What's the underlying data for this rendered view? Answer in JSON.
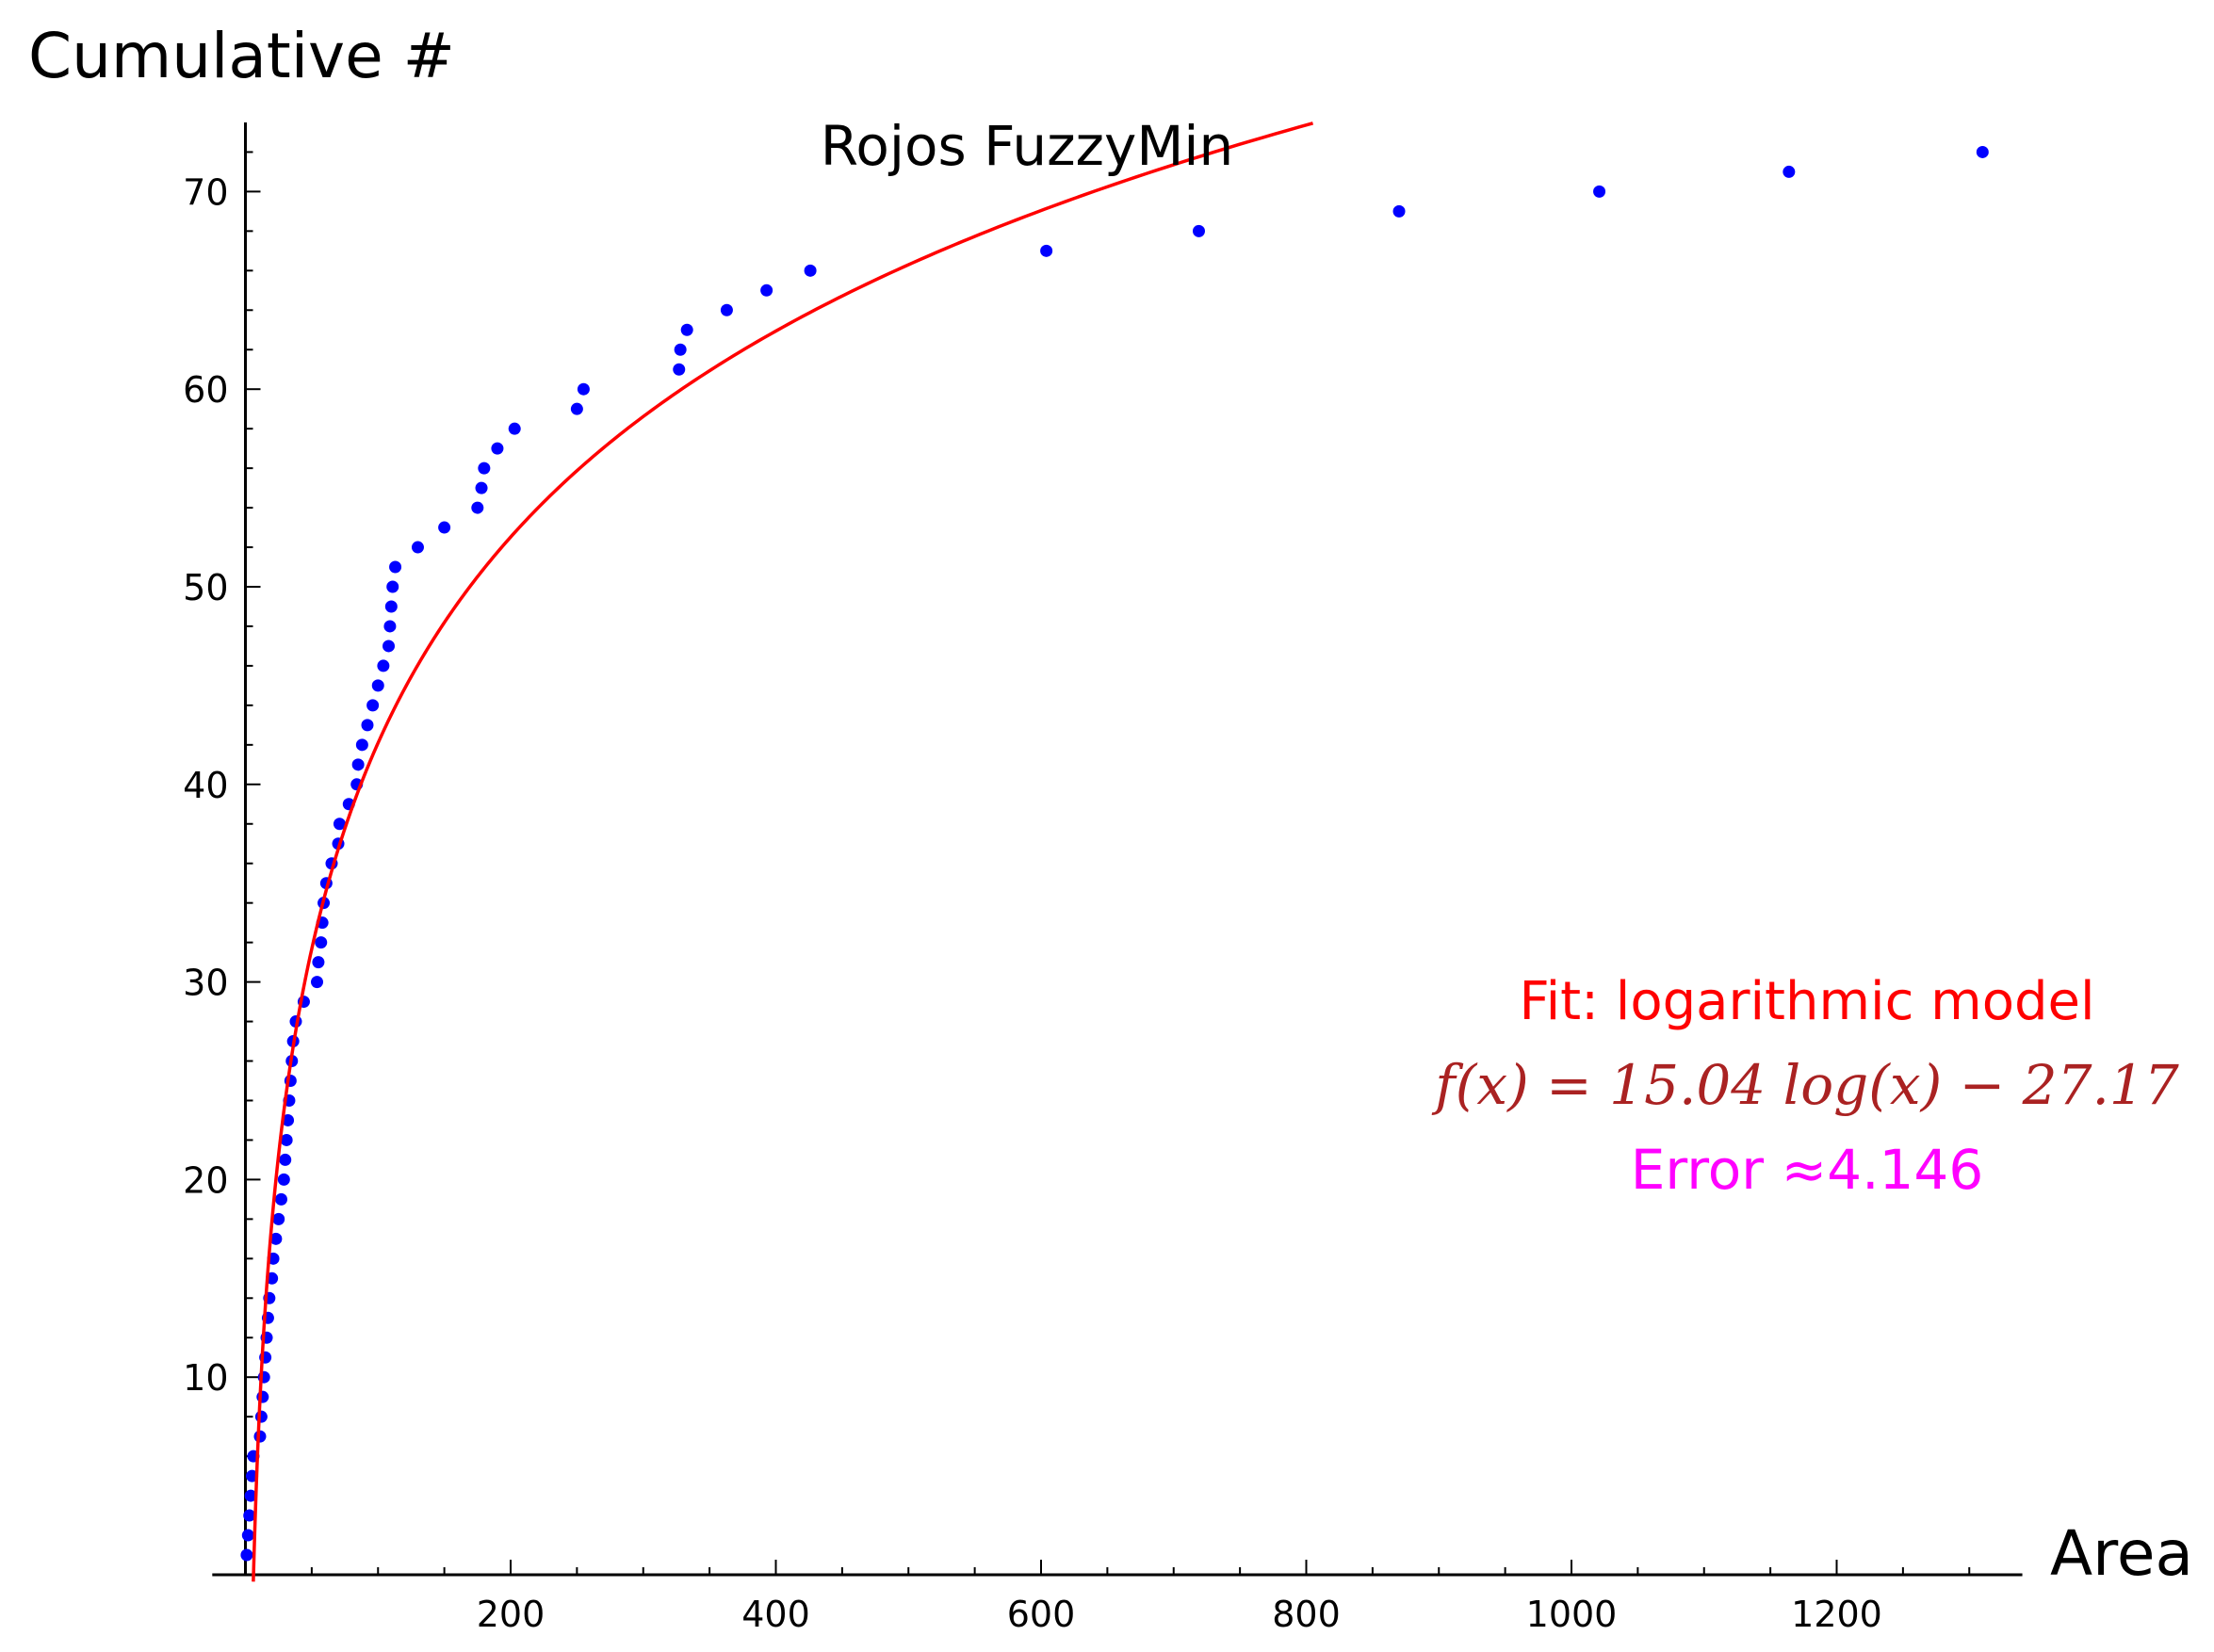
{
  "chart_data": {
    "type": "scatter",
    "title": "Rojos FuzzyMin",
    "xlabel": "Area",
    "ylabel": "Cumulative #",
    "xlim": [
      -25,
      1340
    ],
    "ylim": [
      0,
      73.5
    ],
    "x_ticks": [
      200,
      400,
      600,
      800,
      1000,
      1200
    ],
    "x_minor_step": 50,
    "y_ticks": [
      10,
      20,
      30,
      40,
      50,
      60,
      70
    ],
    "y_minor_step": 2,
    "grid": false,
    "colors": {
      "points": "#0000ff",
      "fit": "#ff0000",
      "formula": "#aa2222",
      "error": "#ff00ff",
      "axes": "#000000"
    },
    "series": [
      {
        "points": [
          [
            1,
            1
          ],
          [
            2,
            2
          ],
          [
            3,
            3
          ],
          [
            4,
            4
          ],
          [
            5,
            5
          ],
          [
            6,
            6
          ],
          [
            11,
            7
          ],
          [
            12,
            8
          ],
          [
            13,
            9
          ],
          [
            14,
            10
          ],
          [
            15,
            11
          ],
          [
            16,
            12
          ],
          [
            17,
            13
          ],
          [
            18,
            14
          ],
          [
            20,
            15
          ],
          [
            21,
            16
          ],
          [
            23,
            17
          ],
          [
            25,
            18
          ],
          [
            27,
            19
          ],
          [
            29,
            20
          ],
          [
            30,
            21
          ],
          [
            31,
            22
          ],
          [
            32,
            23
          ],
          [
            33,
            24
          ],
          [
            34,
            25
          ],
          [
            35,
            26
          ],
          [
            36,
            27
          ],
          [
            38,
            28
          ],
          [
            44,
            29
          ],
          [
            54,
            30
          ],
          [
            55,
            31
          ],
          [
            57,
            32
          ],
          [
            58,
            33
          ],
          [
            59,
            34
          ],
          [
            61,
            35
          ],
          [
            65,
            36
          ],
          [
            70,
            37
          ],
          [
            71,
            38
          ],
          [
            78,
            39
          ],
          [
            84,
            40
          ],
          [
            85,
            41
          ],
          [
            88,
            42
          ],
          [
            92,
            43
          ],
          [
            96,
            44
          ],
          [
            100,
            45
          ],
          [
            104,
            46
          ],
          [
            108,
            47
          ],
          [
            109,
            48
          ],
          [
            110,
            49
          ],
          [
            111,
            50
          ],
          [
            113,
            51
          ],
          [
            130,
            52
          ],
          [
            150,
            53
          ],
          [
            175,
            54
          ],
          [
            178,
            55
          ],
          [
            180,
            56
          ],
          [
            190,
            57
          ],
          [
            203,
            58
          ],
          [
            250,
            59
          ],
          [
            255,
            60
          ],
          [
            327,
            61
          ],
          [
            328,
            62
          ],
          [
            333,
            63
          ],
          [
            363,
            64
          ],
          [
            393,
            65
          ],
          [
            426,
            66
          ],
          [
            604,
            67
          ],
          [
            719,
            68
          ],
          [
            870,
            69
          ],
          [
            1021,
            70
          ],
          [
            1164,
            71
          ],
          [
            1310,
            72
          ]
        ]
      }
    ],
    "fit": {
      "a": 15.04,
      "b": -27.17,
      "x_from": 6.5,
      "x_to": 805
    },
    "annotations": {
      "model": "Fit: logarithmic model",
      "formula": "f(x) = 15.04 log(x) − 27.17",
      "error": "Error ≈4.146"
    }
  }
}
